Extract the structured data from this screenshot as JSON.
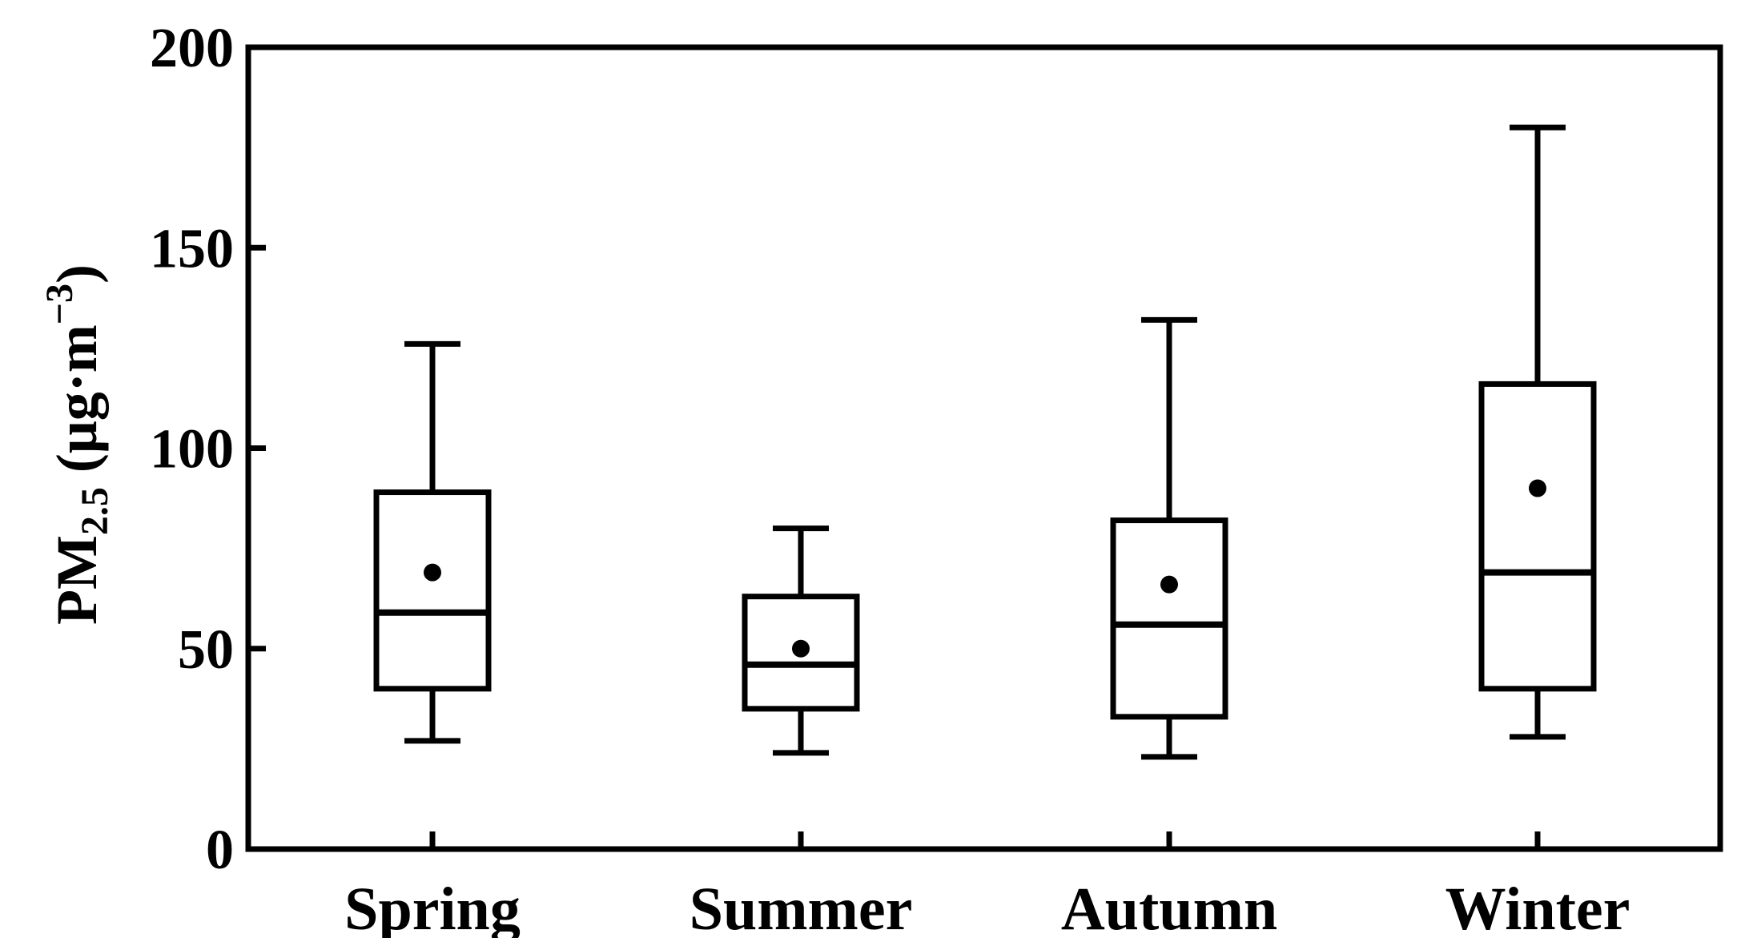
{
  "chart_data": {
    "type": "box",
    "title": "",
    "xlabel": "",
    "ylabel": {
      "prefix": "PM",
      "subscript": "2.5",
      "units_open": " (μg·m",
      "superscript": "−3",
      "units_close": ")"
    },
    "ylim": [
      0,
      200
    ],
    "yticks": [
      0,
      50,
      100,
      150,
      200
    ],
    "ytick_labels": [
      "0",
      "50",
      "100",
      "150",
      "200"
    ],
    "grid": false,
    "categories": [
      "Spring",
      "Summer",
      "Autumn",
      "Winter"
    ],
    "boxes": [
      {
        "category": "Spring",
        "whisker_low": 27,
        "q1": 40,
        "median": 59,
        "q3": 89,
        "whisker_high": 126,
        "mean": 69
      },
      {
        "category": "Summer",
        "whisker_low": 24,
        "q1": 35,
        "median": 46,
        "q3": 63,
        "whisker_high": 80,
        "mean": 50
      },
      {
        "category": "Autumn",
        "whisker_low": 23,
        "q1": 33,
        "median": 56,
        "q3": 82,
        "whisker_high": 132,
        "mean": 66
      },
      {
        "category": "Winter",
        "whisker_low": 28,
        "q1": 40,
        "median": 69,
        "q3": 116,
        "whisker_high": 180,
        "mean": 90
      }
    ],
    "colors": {
      "line": "#000000",
      "background": "#ffffff"
    }
  }
}
